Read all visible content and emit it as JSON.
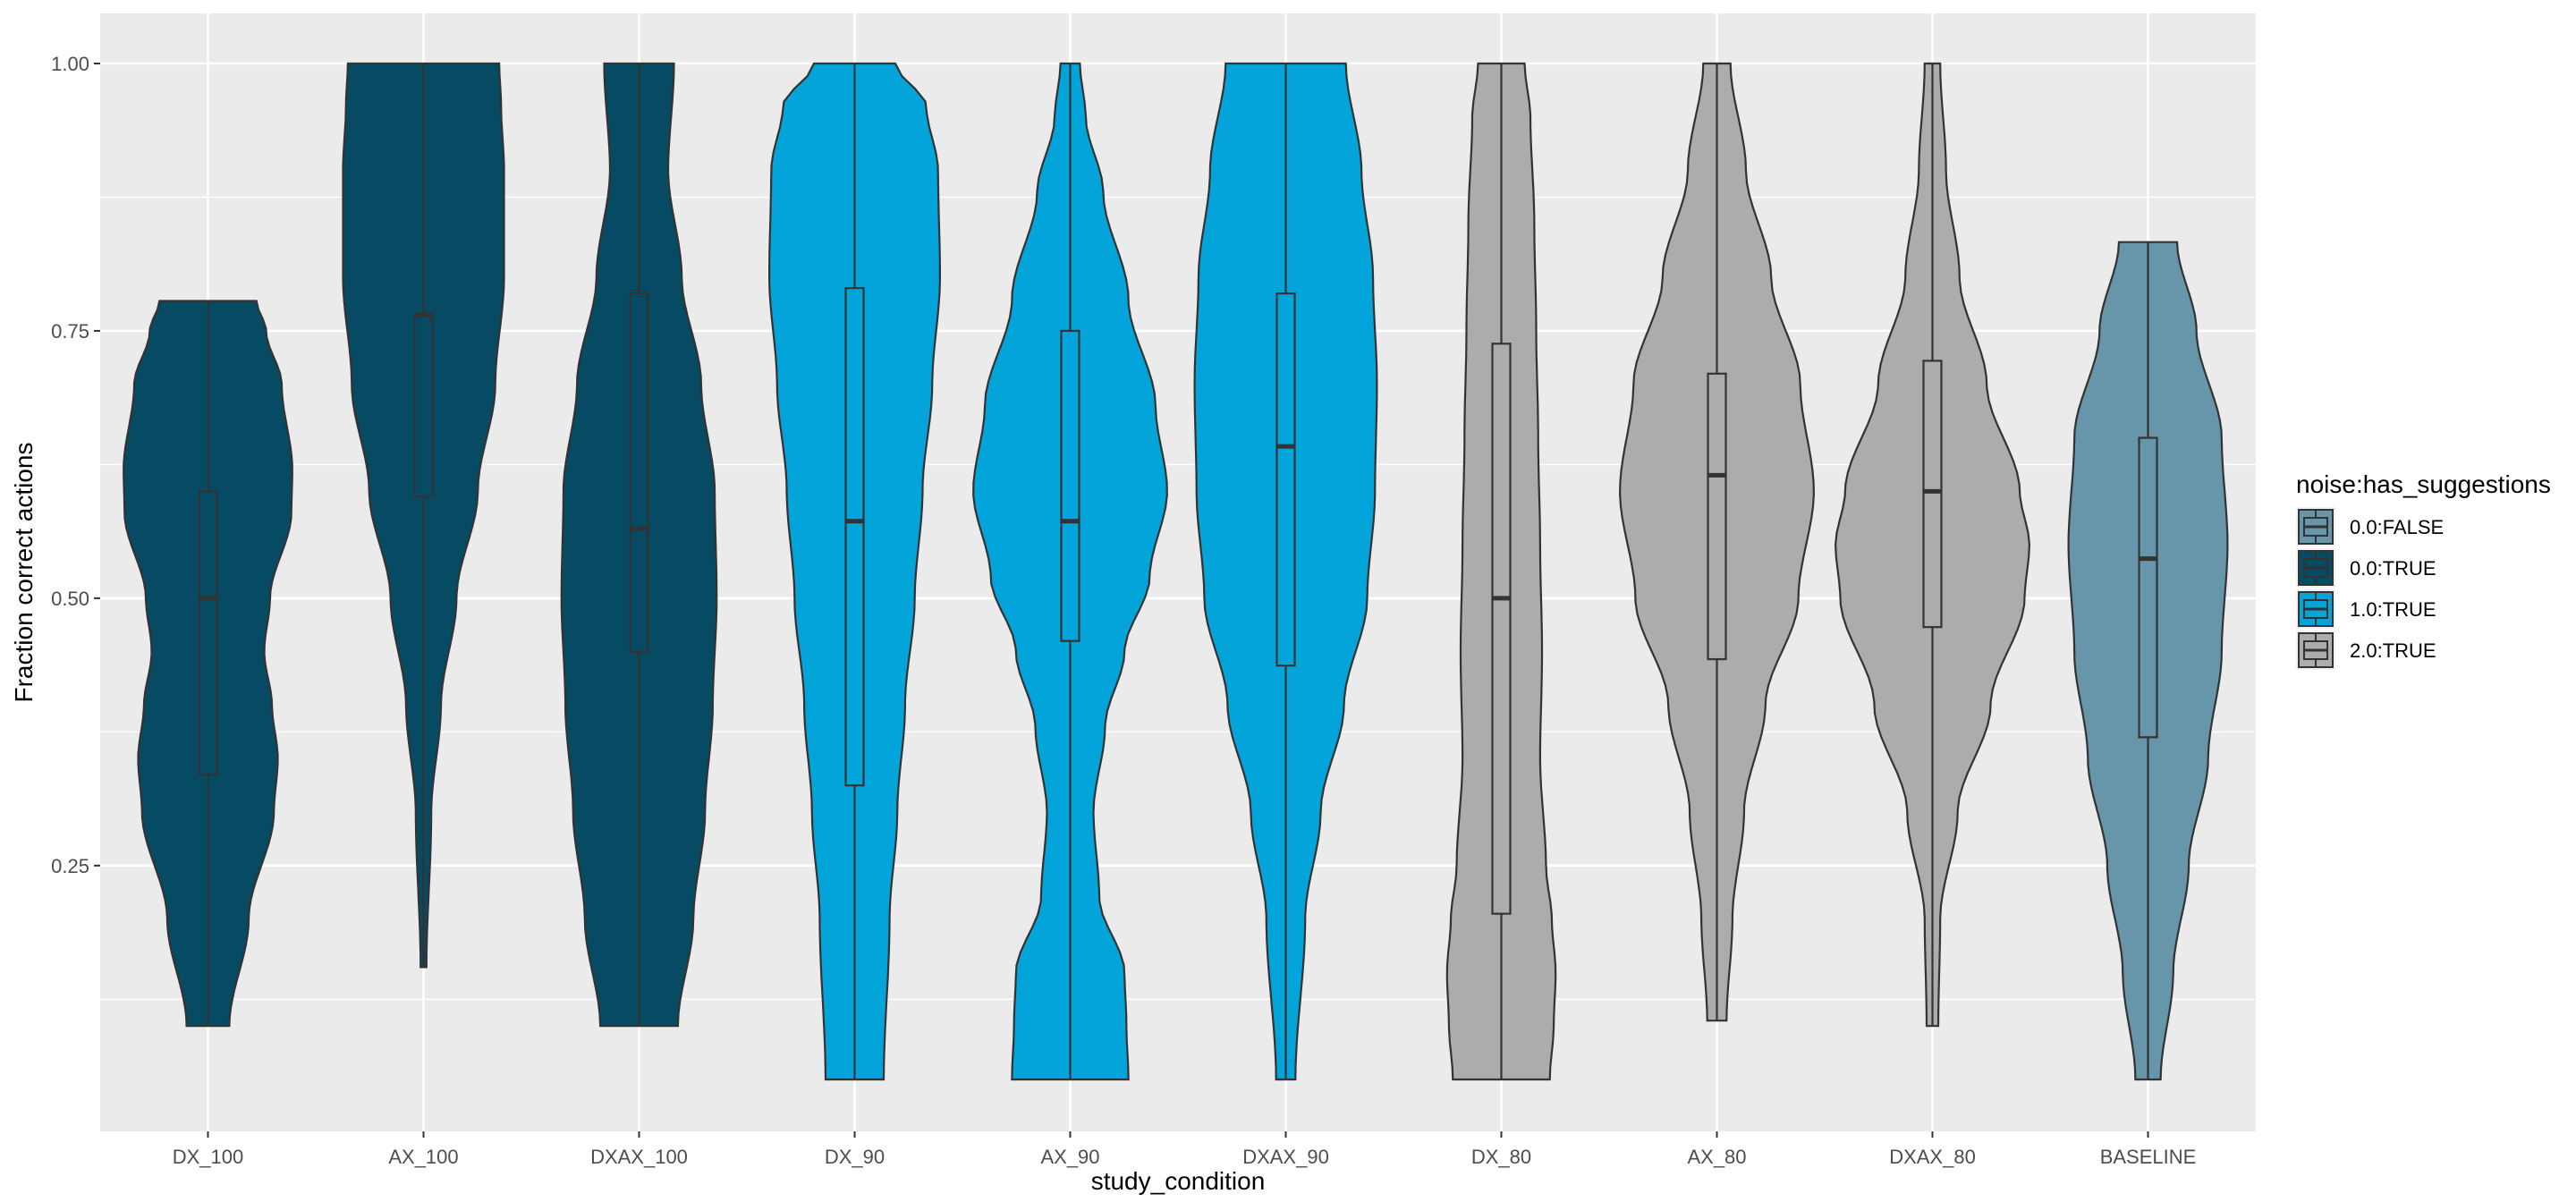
{
  "chart_data": {
    "type": "violin",
    "xlabel": "study_condition",
    "ylabel": "Fraction correct actions",
    "ylim": [
      0.0,
      1.045
    ],
    "yticks": [
      0.25,
      0.5,
      0.75,
      1.0
    ],
    "ytick_labels": [
      "0.25",
      "0.50",
      "0.75",
      "1.00"
    ],
    "grid": true,
    "legend": {
      "title": "noise:has_suggestions",
      "placement": "right",
      "entries": [
        {
          "label": "0.0:FALSE",
          "color": "#6795A9"
        },
        {
          "label": "0.0:TRUE",
          "color": "#064B63"
        },
        {
          "label": "1.0:TRUE",
          "color": "#03A4DA"
        },
        {
          "label": "2.0:TRUE",
          "color": "#ACACAC"
        }
      ]
    },
    "categories": [
      {
        "name": "DX_100",
        "group": "0.0:TRUE",
        "min": 0.1,
        "q1": 0.335,
        "median": 0.5,
        "q3": 0.6,
        "max": 0.778,
        "profile": [
          [
            0.1,
            0.22
          ],
          [
            0.2,
            0.42
          ],
          [
            0.3,
            0.68
          ],
          [
            0.35,
            0.72
          ],
          [
            0.4,
            0.66
          ],
          [
            0.45,
            0.58
          ],
          [
            0.5,
            0.64
          ],
          [
            0.58,
            0.86
          ],
          [
            0.62,
            0.87
          ],
          [
            0.7,
            0.76
          ],
          [
            0.75,
            0.6
          ],
          [
            0.778,
            0.5
          ]
        ]
      },
      {
        "name": "AX_100",
        "group": "0.0:TRUE",
        "min": 0.155,
        "q1": 0.595,
        "median": 0.765,
        "q3": 0.765,
        "max": 1.0,
        "profile": [
          [
            0.155,
            0.03
          ],
          [
            0.3,
            0.08
          ],
          [
            0.4,
            0.18
          ],
          [
            0.5,
            0.34
          ],
          [
            0.6,
            0.56
          ],
          [
            0.7,
            0.74
          ],
          [
            0.8,
            0.83
          ],
          [
            0.9,
            0.83
          ],
          [
            0.96,
            0.8
          ],
          [
            1.0,
            0.78
          ]
        ]
      },
      {
        "name": "DXAX_100",
        "group": "0.0:TRUE",
        "min": 0.1,
        "q1": 0.45,
        "median": 0.565,
        "q3": 0.785,
        "max": 1.0,
        "profile": [
          [
            0.1,
            0.4
          ],
          [
            0.2,
            0.56
          ],
          [
            0.3,
            0.68
          ],
          [
            0.4,
            0.76
          ],
          [
            0.5,
            0.8
          ],
          [
            0.6,
            0.78
          ],
          [
            0.7,
            0.64
          ],
          [
            0.8,
            0.44
          ],
          [
            0.9,
            0.3
          ],
          [
            1.0,
            0.36
          ]
        ]
      },
      {
        "name": "DX_90",
        "group": "1.0:TRUE",
        "min": 0.05,
        "q1": 0.325,
        "median": 0.572,
        "q3": 0.79,
        "max": 1.0,
        "profile": [
          [
            0.05,
            0.3
          ],
          [
            0.2,
            0.36
          ],
          [
            0.3,
            0.44
          ],
          [
            0.4,
            0.52
          ],
          [
            0.5,
            0.62
          ],
          [
            0.6,
            0.7
          ],
          [
            0.7,
            0.8
          ],
          [
            0.8,
            0.88
          ],
          [
            0.9,
            0.86
          ],
          [
            0.96,
            0.74
          ],
          [
            1.0,
            0.42
          ]
        ]
      },
      {
        "name": "AX_90",
        "group": "1.0:TRUE",
        "min": 0.05,
        "q1": 0.46,
        "median": 0.572,
        "q3": 0.75,
        "max": 1.0,
        "profile": [
          [
            0.05,
            0.6
          ],
          [
            0.1,
            0.58
          ],
          [
            0.15,
            0.56
          ],
          [
            0.22,
            0.3
          ],
          [
            0.3,
            0.24
          ],
          [
            0.38,
            0.36
          ],
          [
            0.45,
            0.56
          ],
          [
            0.52,
            0.82
          ],
          [
            0.6,
            1.0
          ],
          [
            0.68,
            0.88
          ],
          [
            0.78,
            0.6
          ],
          [
            0.88,
            0.34
          ],
          [
            0.95,
            0.16
          ],
          [
            1.0,
            0.1
          ]
        ]
      },
      {
        "name": "DXAX_90",
        "group": "1.0:TRUE",
        "min": 0.05,
        "q1": 0.437,
        "median": 0.642,
        "q3": 0.785,
        "max": 1.0,
        "profile": [
          [
            0.05,
            0.1
          ],
          [
            0.2,
            0.2
          ],
          [
            0.3,
            0.36
          ],
          [
            0.4,
            0.6
          ],
          [
            0.5,
            0.84
          ],
          [
            0.6,
            0.92
          ],
          [
            0.7,
            0.94
          ],
          [
            0.8,
            0.9
          ],
          [
            0.9,
            0.78
          ],
          [
            1.0,
            0.62
          ]
        ]
      },
      {
        "name": "DX_80",
        "group": "2.0:TRUE",
        "min": 0.05,
        "q1": 0.205,
        "median": 0.5,
        "q3": 0.738,
        "max": 1.0,
        "profile": [
          [
            0.05,
            0.5
          ],
          [
            0.1,
            0.54
          ],
          [
            0.15,
            0.56
          ],
          [
            0.2,
            0.52
          ],
          [
            0.25,
            0.46
          ],
          [
            0.35,
            0.4
          ],
          [
            0.45,
            0.42
          ],
          [
            0.55,
            0.4
          ],
          [
            0.65,
            0.38
          ],
          [
            0.75,
            0.36
          ],
          [
            0.85,
            0.34
          ],
          [
            0.95,
            0.3
          ],
          [
            1.0,
            0.24
          ]
        ]
      },
      {
        "name": "AX_80",
        "group": "2.0:TRUE",
        "min": 0.105,
        "q1": 0.443,
        "median": 0.615,
        "q3": 0.71,
        "max": 1.0,
        "profile": [
          [
            0.105,
            0.1
          ],
          [
            0.2,
            0.16
          ],
          [
            0.3,
            0.28
          ],
          [
            0.4,
            0.5
          ],
          [
            0.5,
            0.84
          ],
          [
            0.6,
            1.0
          ],
          [
            0.7,
            0.86
          ],
          [
            0.8,
            0.56
          ],
          [
            0.9,
            0.3
          ],
          [
            1.0,
            0.14
          ]
        ]
      },
      {
        "name": "DXAX_80",
        "group": "2.0:TRUE",
        "min": 0.1,
        "q1": 0.473,
        "median": 0.6,
        "q3": 0.722,
        "max": 1.0,
        "profile": [
          [
            0.1,
            0.06
          ],
          [
            0.2,
            0.08
          ],
          [
            0.3,
            0.26
          ],
          [
            0.4,
            0.6
          ],
          [
            0.5,
            0.95
          ],
          [
            0.55,
            1.0
          ],
          [
            0.6,
            0.9
          ],
          [
            0.7,
            0.56
          ],
          [
            0.8,
            0.28
          ],
          [
            0.9,
            0.14
          ],
          [
            1.0,
            0.08
          ]
        ]
      },
      {
        "name": "BASELINE",
        "group": "0.0:FALSE",
        "min": 0.05,
        "q1": 0.37,
        "median": 0.537,
        "q3": 0.65,
        "max": 0.833,
        "profile": [
          [
            0.05,
            0.13
          ],
          [
            0.15,
            0.26
          ],
          [
            0.25,
            0.42
          ],
          [
            0.35,
            0.62
          ],
          [
            0.45,
            0.76
          ],
          [
            0.55,
            0.82
          ],
          [
            0.65,
            0.76
          ],
          [
            0.75,
            0.5
          ],
          [
            0.833,
            0.3
          ]
        ]
      }
    ]
  }
}
